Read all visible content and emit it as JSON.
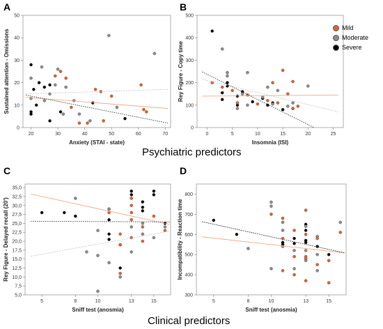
{
  "legend": [
    {
      "name": "Mild",
      "color": "#e0622f"
    },
    {
      "name": "Moderate",
      "color": "#8c8c8c"
    },
    {
      "name": "Severe",
      "color": "#000000"
    }
  ],
  "section_titles": {
    "top": "Psychiatric predictors",
    "bottom": "Clinical predictors"
  },
  "chart_data": [
    {
      "type": "scatter",
      "panel": "A",
      "xlabel": "Anxiety (STAI - state)",
      "ylabel": "Sustained attention - Omissions",
      "xlim": [
        17,
        72
      ],
      "ylim": [
        0,
        50
      ],
      "xticks": [
        20,
        30,
        40,
        50,
        60,
        70
      ],
      "yticks": [
        0,
        10,
        20,
        30,
        40,
        50
      ],
      "points": [
        {
          "g": 2,
          "x": 20,
          "y": 28
        },
        {
          "g": 2,
          "x": 20,
          "y": 7
        },
        {
          "g": 2,
          "x": 20,
          "y": 6
        },
        {
          "g": 2,
          "x": 21,
          "y": 17
        },
        {
          "g": 2,
          "x": 22,
          "y": 10
        },
        {
          "g": 2,
          "x": 23,
          "y": 20
        },
        {
          "g": 2,
          "x": 25,
          "y": 18
        },
        {
          "g": 2,
          "x": 27,
          "y": 19
        },
        {
          "g": 2,
          "x": 31,
          "y": 7
        },
        {
          "g": 2,
          "x": 27,
          "y": 3
        },
        {
          "g": 2,
          "x": 43,
          "y": 11
        },
        {
          "g": 2,
          "x": 55,
          "y": 4
        },
        {
          "g": 1,
          "x": 20,
          "y": 22
        },
        {
          "g": 1,
          "x": 20,
          "y": 13
        },
        {
          "g": 1,
          "x": 24,
          "y": 27
        },
        {
          "g": 1,
          "x": 25,
          "y": 12
        },
        {
          "g": 1,
          "x": 27,
          "y": 15
        },
        {
          "g": 1,
          "x": 29,
          "y": 19
        },
        {
          "g": 1,
          "x": 30,
          "y": 26
        },
        {
          "g": 1,
          "x": 33,
          "y": 18
        },
        {
          "g": 1,
          "x": 32,
          "y": 6
        },
        {
          "g": 1,
          "x": 36,
          "y": 12
        },
        {
          "g": 1,
          "x": 38,
          "y": 6
        },
        {
          "g": 1,
          "x": 49,
          "y": 41
        },
        {
          "g": 1,
          "x": 52,
          "y": 9
        },
        {
          "g": 1,
          "x": 66,
          "y": 33
        },
        {
          "g": 1,
          "x": 42,
          "y": 3
        },
        {
          "g": 0,
          "x": 29,
          "y": 23
        },
        {
          "g": 0,
          "x": 31,
          "y": 25
        },
        {
          "g": 0,
          "x": 33,
          "y": 22
        },
        {
          "g": 0,
          "x": 35,
          "y": 9
        },
        {
          "g": 0,
          "x": 38,
          "y": 2
        },
        {
          "g": 0,
          "x": 41,
          "y": 2
        },
        {
          "g": 0,
          "x": 44,
          "y": 17
        },
        {
          "g": 0,
          "x": 46,
          "y": 16
        },
        {
          "g": 0,
          "x": 47,
          "y": 3
        },
        {
          "g": 0,
          "x": 50,
          "y": 14
        },
        {
          "g": 0,
          "x": 61,
          "y": 19
        },
        {
          "g": 0,
          "x": 62,
          "y": 8
        },
        {
          "g": 0,
          "x": 63,
          "y": 7
        }
      ],
      "fits": [
        {
          "g": 0,
          "x": [
            18,
            71
          ],
          "y": [
            13.5,
            8.5
          ]
        },
        {
          "g": 1,
          "x": [
            18,
            71
          ],
          "y": [
            15.0,
            17.0
          ]
        },
        {
          "g": 2,
          "x": [
            18,
            71
          ],
          "y": [
            14.5,
            2.0
          ]
        }
      ]
    },
    {
      "type": "scatter",
      "panel": "B",
      "xlabel": "Insomnia (ISI)",
      "ylabel": "Rey Figure - Copy time",
      "xlim": [
        -2,
        27
      ],
      "ylim": [
        0,
        500
      ],
      "xticks": [
        0,
        5,
        10,
        15,
        20,
        25
      ],
      "yticks": [
        0,
        100,
        200,
        300,
        400,
        500
      ],
      "points": [
        {
          "g": 2,
          "x": 1,
          "y": 430
        },
        {
          "g": 2,
          "x": 3,
          "y": 155
        },
        {
          "g": 2,
          "x": 3,
          "y": 125
        },
        {
          "g": 2,
          "x": 4,
          "y": 200
        },
        {
          "g": 2,
          "x": 4,
          "y": 185
        },
        {
          "g": 2,
          "x": 6,
          "y": 140
        },
        {
          "g": 2,
          "x": 6,
          "y": 100
        },
        {
          "g": 2,
          "x": 7,
          "y": 160
        },
        {
          "g": 2,
          "x": 9,
          "y": 115
        },
        {
          "g": 2,
          "x": 11,
          "y": 130
        },
        {
          "g": 2,
          "x": 12,
          "y": 100
        },
        {
          "g": 2,
          "x": 13,
          "y": 110
        },
        {
          "g": 2,
          "x": 15,
          "y": 80
        },
        {
          "g": 2,
          "x": 17,
          "y": 85
        },
        {
          "g": 1,
          "x": 3,
          "y": 350
        },
        {
          "g": 1,
          "x": 4,
          "y": 245
        },
        {
          "g": 1,
          "x": 4,
          "y": 230
        },
        {
          "g": 1,
          "x": 6,
          "y": 85
        },
        {
          "g": 1,
          "x": 7,
          "y": 150
        },
        {
          "g": 1,
          "x": 8,
          "y": 245
        },
        {
          "g": 1,
          "x": 8,
          "y": 100
        },
        {
          "g": 1,
          "x": 11,
          "y": 135
        },
        {
          "g": 1,
          "x": 12,
          "y": 180
        },
        {
          "g": 1,
          "x": 13,
          "y": 105
        },
        {
          "g": 1,
          "x": 14,
          "y": 165
        },
        {
          "g": 1,
          "x": 16,
          "y": 95
        },
        {
          "g": 1,
          "x": 17,
          "y": 110
        },
        {
          "g": 1,
          "x": 20,
          "y": 185
        },
        {
          "g": 0,
          "x": 1,
          "y": 200
        },
        {
          "g": 0,
          "x": 3,
          "y": 180
        },
        {
          "g": 0,
          "x": 5,
          "y": 165
        },
        {
          "g": 0,
          "x": 6,
          "y": 110
        },
        {
          "g": 0,
          "x": 8,
          "y": 145
        },
        {
          "g": 0,
          "x": 10,
          "y": 105
        },
        {
          "g": 0,
          "x": 12,
          "y": 120
        },
        {
          "g": 0,
          "x": 13,
          "y": 200
        },
        {
          "g": 0,
          "x": 14,
          "y": 110
        },
        {
          "g": 0,
          "x": 15,
          "y": 255
        },
        {
          "g": 0,
          "x": 16,
          "y": 150
        },
        {
          "g": 0,
          "x": 17,
          "y": 205
        },
        {
          "g": 0,
          "x": 17,
          "y": 85
        },
        {
          "g": 0,
          "x": 18,
          "y": 95
        }
      ],
      "fits": [
        {
          "g": 0,
          "x": [
            -1,
            26
          ],
          "y": [
            140,
            145
          ]
        },
        {
          "g": 1,
          "x": [
            -1,
            26
          ],
          "y": [
            215,
            70
          ]
        },
        {
          "g": 2,
          "x": [
            -1,
            21.2
          ],
          "y": [
            248,
            0
          ]
        }
      ]
    },
    {
      "type": "scatter",
      "panel": "C",
      "xlabel": "Sniff test (anosmia)",
      "ylabel": "Rey Figure - Delayed recall (20')",
      "xlim": [
        3.5,
        16.5
      ],
      "ylim": [
        5,
        36
      ],
      "xticks": [
        5,
        8,
        10,
        13,
        15
      ],
      "yticks": [
        5,
        7.5,
        10,
        12.5,
        15,
        17.5,
        20,
        22.5,
        25,
        27.5,
        30,
        32.5,
        35
      ],
      "ytick_labels": [
        "5,0",
        "7,5",
        "10,0",
        "12,5",
        "15,0",
        "17,5",
        "20,0",
        "22,5",
        "25,0",
        "27,5",
        "30,0",
        "32,5",
        "35,0"
      ],
      "points": [
        {
          "g": 2,
          "x": 5,
          "y": 28
        },
        {
          "g": 2,
          "x": 7,
          "y": 28
        },
        {
          "g": 2,
          "x": 8,
          "y": 27
        },
        {
          "g": 2,
          "x": 11,
          "y": 29
        },
        {
          "g": 2,
          "x": 11,
          "y": 26
        },
        {
          "g": 2,
          "x": 11,
          "y": 22
        },
        {
          "g": 2,
          "x": 11,
          "y": 20.5
        },
        {
          "g": 2,
          "x": 12,
          "y": 12.5
        },
        {
          "g": 2,
          "x": 13,
          "y": 34
        },
        {
          "g": 2,
          "x": 13,
          "y": 33
        },
        {
          "g": 2,
          "x": 14,
          "y": 31
        },
        {
          "g": 2,
          "x": 14,
          "y": 29.5
        },
        {
          "g": 2,
          "x": 14,
          "y": 28.5
        },
        {
          "g": 2,
          "x": 15,
          "y": 34
        },
        {
          "g": 2,
          "x": 15,
          "y": 33
        },
        {
          "g": 2,
          "x": 16,
          "y": 25
        },
        {
          "g": 1,
          "x": 8,
          "y": 32
        },
        {
          "g": 1,
          "x": 9,
          "y": 17
        },
        {
          "g": 1,
          "x": 10,
          "y": 23
        },
        {
          "g": 1,
          "x": 10,
          "y": 16
        },
        {
          "g": 1,
          "x": 10,
          "y": 6
        },
        {
          "g": 1,
          "x": 11,
          "y": 29
        },
        {
          "g": 1,
          "x": 11,
          "y": 14
        },
        {
          "g": 1,
          "x": 12,
          "y": 19
        },
        {
          "g": 1,
          "x": 12,
          "y": 10
        },
        {
          "g": 1,
          "x": 13,
          "y": 24
        },
        {
          "g": 1,
          "x": 13,
          "y": 17
        },
        {
          "g": 1,
          "x": 14,
          "y": 25
        },
        {
          "g": 1,
          "x": 14,
          "y": 22
        },
        {
          "g": 1,
          "x": 15,
          "y": 21
        },
        {
          "g": 1,
          "x": 16,
          "y": 24
        },
        {
          "g": 0,
          "x": 11,
          "y": 28
        },
        {
          "g": 0,
          "x": 12,
          "y": 22
        },
        {
          "g": 0,
          "x": 12,
          "y": 19
        },
        {
          "g": 0,
          "x": 12,
          "y": 11
        },
        {
          "g": 0,
          "x": 13,
          "y": 32
        },
        {
          "g": 0,
          "x": 13,
          "y": 30
        },
        {
          "g": 0,
          "x": 13,
          "y": 28
        },
        {
          "g": 0,
          "x": 13,
          "y": 26
        },
        {
          "g": 0,
          "x": 13,
          "y": 21
        },
        {
          "g": 0,
          "x": 14,
          "y": 24
        },
        {
          "g": 0,
          "x": 14,
          "y": 20
        },
        {
          "g": 0,
          "x": 15,
          "y": 27
        },
        {
          "g": 0,
          "x": 16,
          "y": 23
        }
      ],
      "fits": [
        {
          "g": 0,
          "x": [
            4,
            16.4
          ],
          "y": [
            33.2,
            24.7
          ]
        },
        {
          "g": 1,
          "x": [
            4,
            16.4
          ],
          "y": [
            15.8,
            22.8
          ]
        },
        {
          "g": 2,
          "x": [
            4,
            16.4
          ],
          "y": [
            25.6,
            25.4
          ]
        }
      ]
    },
    {
      "type": "scatter",
      "panel": "D",
      "xlabel": "Sniff test (anosmia)",
      "ylabel": "Incompatibility - Reaction time",
      "xlim": [
        3.5,
        16.5
      ],
      "ylim": [
        300,
        850
      ],
      "xticks": [
        5,
        8,
        10,
        13,
        15
      ],
      "yticks": [
        300,
        400,
        500,
        600,
        700,
        800
      ],
      "points": [
        {
          "g": 2,
          "x": 5,
          "y": 670
        },
        {
          "g": 2,
          "x": 7,
          "y": 600
        },
        {
          "g": 2,
          "x": 11,
          "y": 560
        },
        {
          "g": 2,
          "x": 11,
          "y": 550
        },
        {
          "g": 2,
          "x": 12,
          "y": 580
        },
        {
          "g": 2,
          "x": 12,
          "y": 555
        },
        {
          "g": 2,
          "x": 13,
          "y": 650
        },
        {
          "g": 2,
          "x": 13,
          "y": 620
        },
        {
          "g": 2,
          "x": 13,
          "y": 570
        },
        {
          "g": 2,
          "x": 13,
          "y": 560
        },
        {
          "g": 2,
          "x": 14,
          "y": 540
        },
        {
          "g": 2,
          "x": 15,
          "y": 500
        },
        {
          "g": 1,
          "x": 8,
          "y": 530
        },
        {
          "g": 1,
          "x": 10,
          "y": 760
        },
        {
          "g": 1,
          "x": 10,
          "y": 740
        },
        {
          "g": 1,
          "x": 10,
          "y": 430
        },
        {
          "g": 1,
          "x": 11,
          "y": 660
        },
        {
          "g": 1,
          "x": 11,
          "y": 620
        },
        {
          "g": 1,
          "x": 11,
          "y": 540
        },
        {
          "g": 1,
          "x": 12,
          "y": 520
        },
        {
          "g": 1,
          "x": 12,
          "y": 430
        },
        {
          "g": 1,
          "x": 13,
          "y": 640
        },
        {
          "g": 1,
          "x": 13,
          "y": 520
        },
        {
          "g": 1,
          "x": 13,
          "y": 470
        },
        {
          "g": 1,
          "x": 14,
          "y": 590
        },
        {
          "g": 1,
          "x": 14,
          "y": 500
        },
        {
          "g": 1,
          "x": 14,
          "y": 420
        },
        {
          "g": 1,
          "x": 16,
          "y": 660
        },
        {
          "g": 0,
          "x": 10,
          "y": 700
        },
        {
          "g": 0,
          "x": 11,
          "y": 680
        },
        {
          "g": 0,
          "x": 11,
          "y": 580
        },
        {
          "g": 0,
          "x": 11,
          "y": 420
        },
        {
          "g": 0,
          "x": 12,
          "y": 620
        },
        {
          "g": 0,
          "x": 12,
          "y": 490
        },
        {
          "g": 0,
          "x": 12,
          "y": 400
        },
        {
          "g": 0,
          "x": 13,
          "y": 720
        },
        {
          "g": 0,
          "x": 13,
          "y": 600
        },
        {
          "g": 0,
          "x": 13,
          "y": 490
        },
        {
          "g": 0,
          "x": 13,
          "y": 480
        },
        {
          "g": 0,
          "x": 13,
          "y": 370
        },
        {
          "g": 0,
          "x": 14,
          "y": 580
        },
        {
          "g": 0,
          "x": 14,
          "y": 450
        },
        {
          "g": 0,
          "x": 15,
          "y": 470
        },
        {
          "g": 0,
          "x": 15,
          "y": 360
        },
        {
          "g": 0,
          "x": 16,
          "y": 610
        }
      ],
      "fits": [
        {
          "g": 0,
          "x": [
            4,
            16.4
          ],
          "y": [
            588,
            508
          ]
        },
        {
          "g": 1,
          "x": [
            4,
            16.4
          ],
          "y": [
            663,
            508
          ]
        },
        {
          "g": 2,
          "x": [
            4,
            16.4
          ],
          "y": [
            663,
            508
          ]
        }
      ]
    }
  ]
}
